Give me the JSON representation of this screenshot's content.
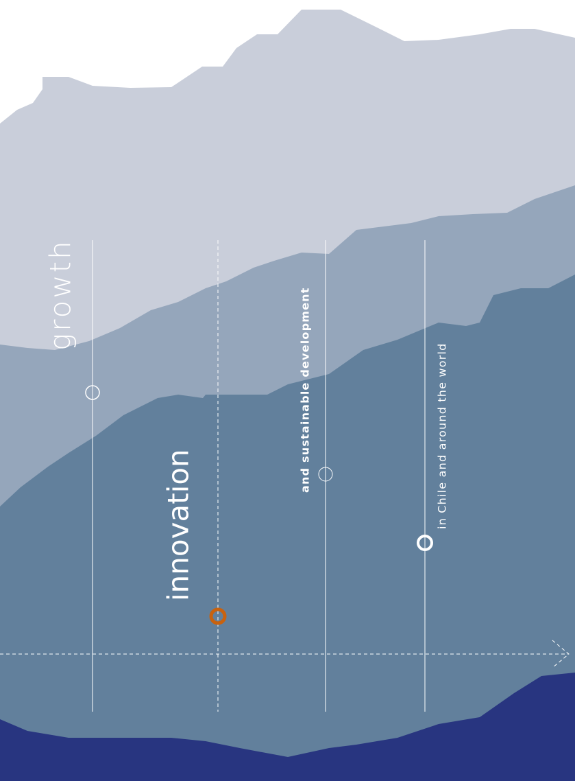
{
  "labels": {
    "growth": "growth",
    "innovation": "innovation",
    "sustainable": "and sustainable development",
    "world": "in Chile and around the world"
  }
}
